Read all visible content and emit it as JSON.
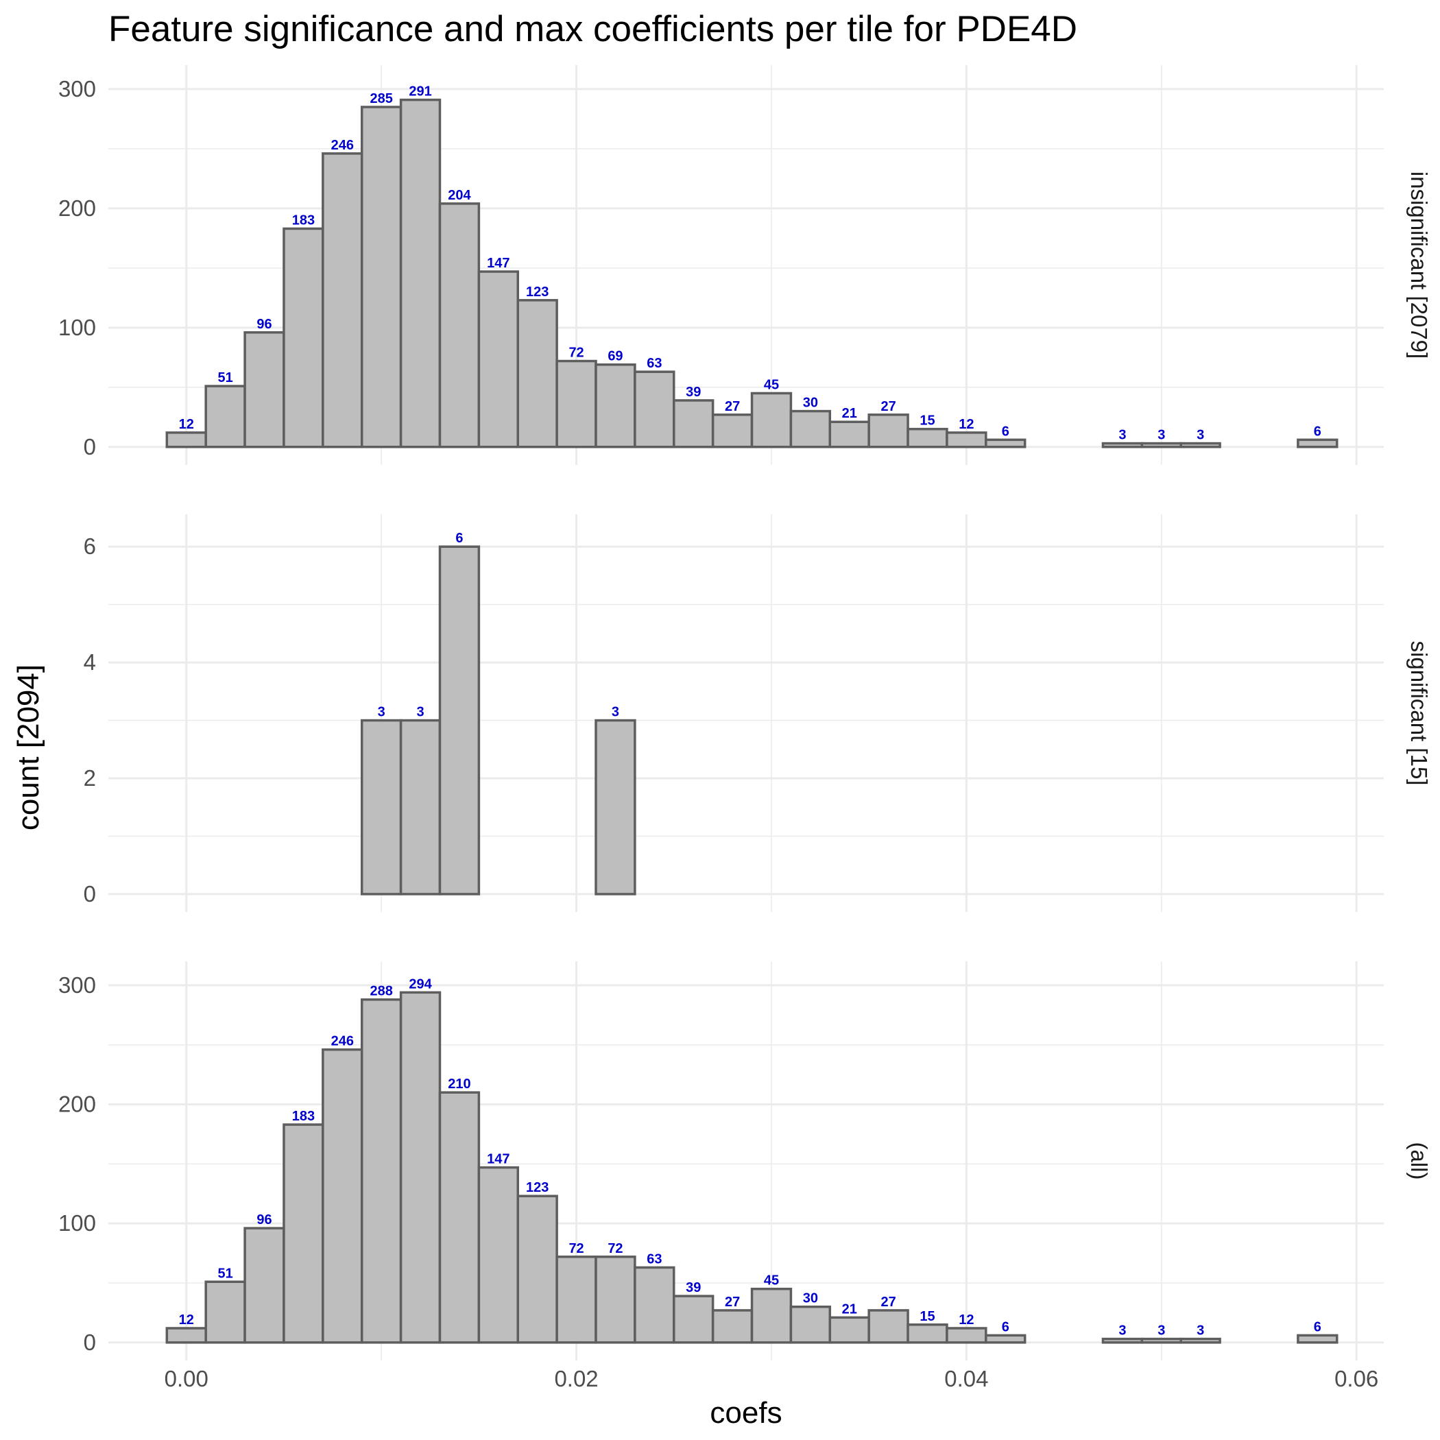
{
  "chart_data": {
    "type": "bar",
    "title": "Feature significance and max coefficients per tile for PDE4D",
    "xlabel": "coefs",
    "ylabel": "count [2094]",
    "x_ticks": [
      "0.00",
      "0.02",
      "0.04",
      "0.06"
    ],
    "x_tick_values": [
      0.0,
      0.02,
      0.04,
      0.06
    ],
    "xlim": [
      -0.004,
      0.0614
    ],
    "bin_width": 0.002,
    "bin_centers": [
      0.0,
      0.002,
      0.004,
      0.006,
      0.008,
      0.01,
      0.012,
      0.014,
      0.016,
      0.018,
      0.02,
      0.022,
      0.024,
      0.026,
      0.028,
      0.03,
      0.032,
      0.034,
      0.036,
      0.038,
      0.04,
      0.042,
      0.044,
      0.046,
      0.048,
      0.05,
      0.052,
      0.054,
      0.056,
      0.058
    ],
    "grid": true,
    "facets": [
      {
        "name": "insignificant [2079]",
        "ylim": [
          0,
          305
        ],
        "y_ticks": [
          "0",
          "100",
          "200",
          "300"
        ],
        "y_tick_values": [
          0,
          100,
          200,
          300
        ],
        "values": [
          12,
          51,
          96,
          183,
          246,
          285,
          291,
          204,
          147,
          123,
          72,
          69,
          63,
          39,
          27,
          45,
          30,
          21,
          27,
          15,
          12,
          6,
          0,
          0,
          3,
          3,
          3,
          0,
          0,
          6
        ]
      },
      {
        "name": "significant [15]",
        "ylim": [
          0,
          6.25
        ],
        "y_ticks": [
          "0",
          "2",
          "4",
          "6"
        ],
        "y_tick_values": [
          0,
          2,
          4,
          6
        ],
        "values": [
          0,
          0,
          0,
          0,
          0,
          3,
          3,
          6,
          0,
          0,
          0,
          3,
          0,
          0,
          0,
          0,
          0,
          0,
          0,
          0,
          0,
          0,
          0,
          0,
          0,
          0,
          0,
          0,
          0,
          0
        ]
      },
      {
        "name": "(all)",
        "ylim": [
          0,
          305
        ],
        "y_ticks": [
          "0",
          "100",
          "200",
          "300"
        ],
        "y_tick_values": [
          0,
          100,
          200,
          300
        ],
        "values": [
          12,
          51,
          96,
          183,
          246,
          288,
          294,
          210,
          147,
          123,
          72,
          72,
          63,
          39,
          27,
          45,
          30,
          21,
          27,
          15,
          12,
          6,
          0,
          0,
          3,
          3,
          3,
          0,
          0,
          6
        ]
      }
    ],
    "colors": {
      "bar_fill": "#bebebe",
      "bar_stroke": "#5e5e5e",
      "bar_label": "#0000cd",
      "grid": "#ebebeb",
      "tick_text": "#4d4d4d"
    }
  }
}
